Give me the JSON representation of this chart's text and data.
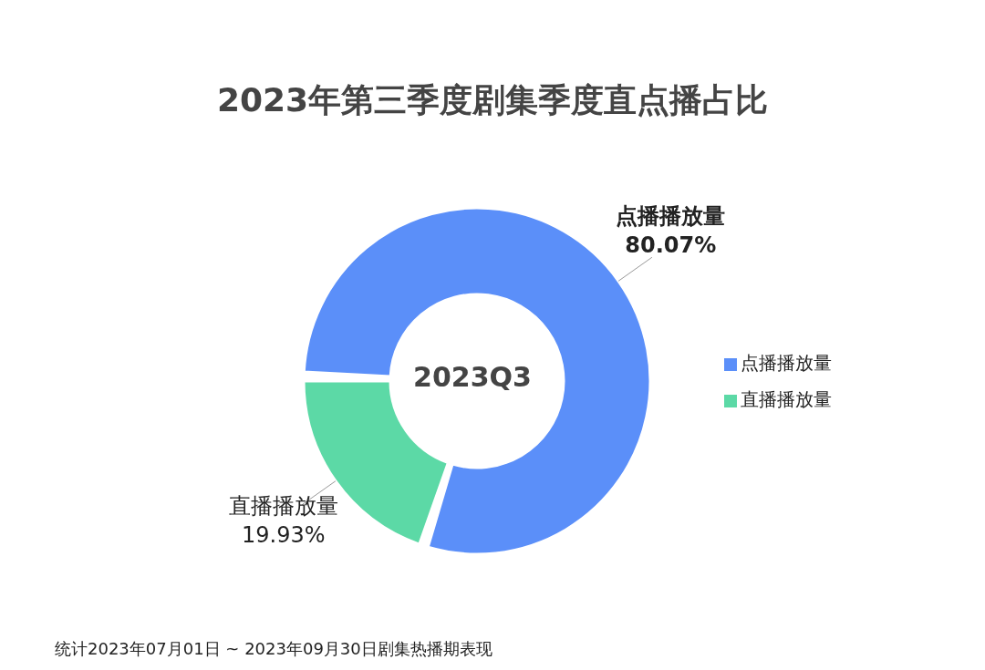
{
  "chart_data": {
    "type": "donut",
    "title": "2023年第三季度剧集季度直点播占比",
    "categories": [
      "直播播放量",
      "点播播放量"
    ],
    "values": [
      19.93,
      80.07
    ],
    "colors": [
      "#5cd9a6",
      "#5b8ff9"
    ],
    "value_labels": [
      "19.93%",
      "80.07%"
    ],
    "legend": "right",
    "annotations": [
      "2023Q3",
      "统计2023年07月01日 ~ 2023年09月30日剧集热播期表现"
    ]
  }
}
